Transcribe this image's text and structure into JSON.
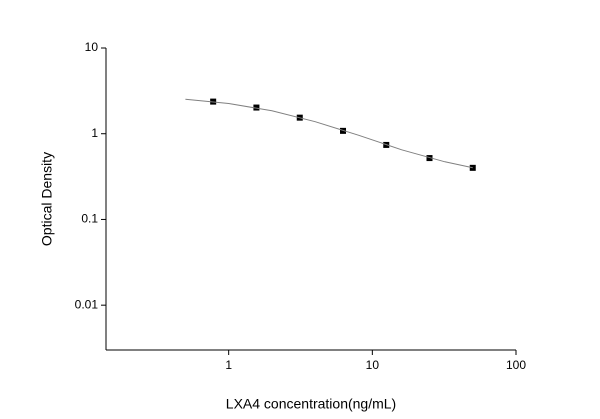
{
  "chart_data": {
    "type": "scatter",
    "x_label": "LXA4 concentration(ng/mL)",
    "y_label": "Optical Density",
    "x_log": true,
    "y_log": true,
    "xlim": [
      0.14,
      100
    ],
    "xticks": [
      1,
      10,
      100
    ],
    "ylim": [
      0.003,
      10
    ],
    "yticks": [
      10,
      1,
      0.1,
      0.01
    ],
    "series": [
      {
        "x": [
          0.78,
          1.56,
          3.125,
          6.25,
          12.5,
          25,
          50
        ],
        "values": [
          2.37,
          2.02,
          1.54,
          1.08,
          0.74,
          0.52,
          0.4
        ],
        "color": "#000000",
        "marker": "square"
      },
      {
        "x": [
          0.5,
          1,
          2,
          4,
          8,
          16,
          32,
          50
        ],
        "values": [
          2.52,
          2.25,
          1.85,
          1.38,
          0.96,
          0.65,
          0.47,
          0.4
        ],
        "color": "#808080",
        "marker": "line"
      }
    ]
  }
}
